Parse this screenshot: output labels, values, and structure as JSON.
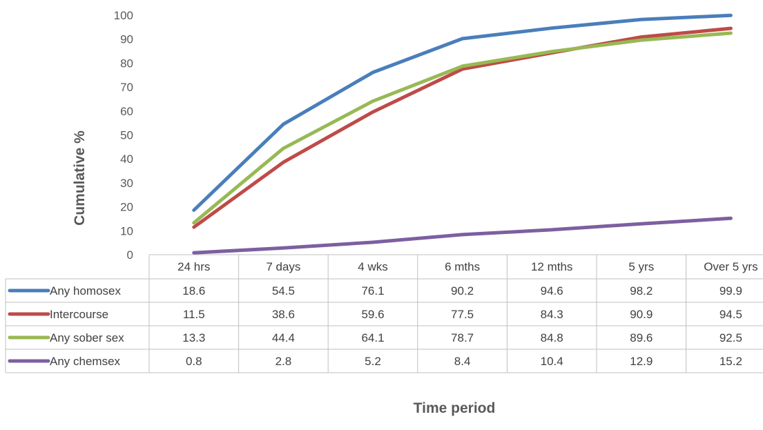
{
  "chart_data": {
    "type": "line",
    "title": "",
    "xlabel": "Time period",
    "ylabel": "Cumulative %",
    "ylim": [
      0,
      100
    ],
    "yticks": [
      0,
      10,
      20,
      30,
      40,
      50,
      60,
      70,
      80,
      90,
      100
    ],
    "grid": false,
    "legend": "data-table-left",
    "categories": [
      "24 hrs",
      "7 days",
      "4 wks",
      "6 mths",
      "12 mths",
      "5 yrs",
      "Over 5 yrs"
    ],
    "series": [
      {
        "name": "Any homosex",
        "color": "#4a7ebb",
        "values": [
          18.6,
          54.5,
          76.1,
          90.2,
          94.6,
          98.2,
          99.9
        ]
      },
      {
        "name": "Intercourse",
        "color": "#be4b48",
        "values": [
          11.5,
          38.6,
          59.6,
          77.5,
          84.3,
          90.9,
          94.5
        ]
      },
      {
        "name": "Any sober sex",
        "color": "#98b954",
        "values": [
          13.3,
          44.4,
          64.1,
          78.7,
          84.8,
          89.6,
          92.5
        ]
      },
      {
        "name": "Any chemsex",
        "color": "#7d5fa0",
        "values": [
          0.8,
          2.8,
          5.2,
          8.4,
          10.4,
          12.9,
          15.2
        ]
      }
    ]
  }
}
